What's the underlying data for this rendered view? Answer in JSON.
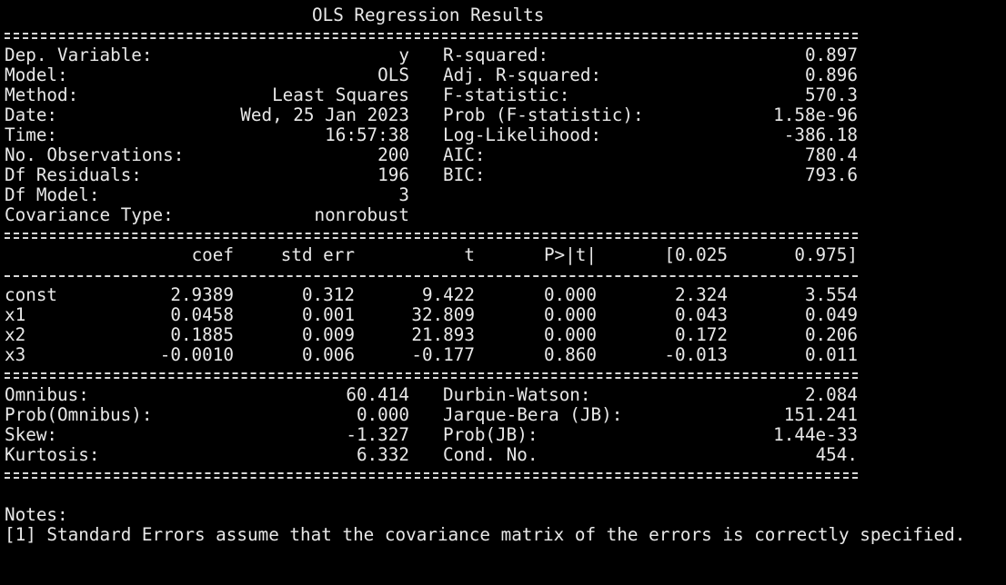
{
  "title": "OLS Regression Results",
  "summary_left": [
    {
      "label": "Dep. Variable:",
      "value": "y"
    },
    {
      "label": "Model:",
      "value": "OLS"
    },
    {
      "label": "Method:",
      "value": "Least Squares"
    },
    {
      "label": "Date:",
      "value": "Wed, 25 Jan 2023"
    },
    {
      "label": "Time:",
      "value": "16:57:38"
    },
    {
      "label": "No. Observations:",
      "value": "200"
    },
    {
      "label": "Df Residuals:",
      "value": "196"
    },
    {
      "label": "Df Model:",
      "value": "3"
    },
    {
      "label": "Covariance Type:",
      "value": "nonrobust"
    }
  ],
  "summary_right": [
    {
      "label": "R-squared:",
      "value": "0.897"
    },
    {
      "label": "Adj. R-squared:",
      "value": "0.896"
    },
    {
      "label": "F-statistic:",
      "value": "570.3"
    },
    {
      "label": "Prob (F-statistic):",
      "value": "1.58e-96"
    },
    {
      "label": "Log-Likelihood:",
      "value": "-386.18"
    },
    {
      "label": "AIC:",
      "value": "780.4"
    },
    {
      "label": "BIC:",
      "value": "793.6"
    }
  ],
  "coef_table": {
    "headers": [
      "coef",
      "std err",
      "t",
      "P>|t|",
      "[0.025",
      "0.975]"
    ],
    "rows": [
      {
        "name": "const",
        "values": [
          "2.9389",
          "0.312",
          "9.422",
          "0.000",
          "2.324",
          "3.554"
        ]
      },
      {
        "name": "x1",
        "values": [
          "0.0458",
          "0.001",
          "32.809",
          "0.000",
          "0.043",
          "0.049"
        ]
      },
      {
        "name": "x2",
        "values": [
          "0.1885",
          "0.009",
          "21.893",
          "0.000",
          "0.172",
          "0.206"
        ]
      },
      {
        "name": "x3",
        "values": [
          "-0.0010",
          "0.006",
          "-0.177",
          "0.860",
          "-0.013",
          "0.011"
        ]
      }
    ]
  },
  "diagnostics_left": [
    {
      "label": "Omnibus:",
      "value": "60.414"
    },
    {
      "label": "Prob(Omnibus):",
      "value": "0.000"
    },
    {
      "label": "Skew:",
      "value": "-1.327"
    },
    {
      "label": "Kurtosis:",
      "value": "6.332"
    }
  ],
  "diagnostics_right": [
    {
      "label": "Durbin-Watson:",
      "value": "2.084"
    },
    {
      "label": "Jarque-Bera (JB):",
      "value": "151.241"
    },
    {
      "label": "Prob(JB):",
      "value": "1.44e-33"
    },
    {
      "label": "Cond. No.",
      "value": "454."
    }
  ],
  "notes": {
    "heading": "Notes:",
    "items": [
      "[1] Standard Errors assume that the covariance matrix of the errors is correctly specified."
    ]
  }
}
